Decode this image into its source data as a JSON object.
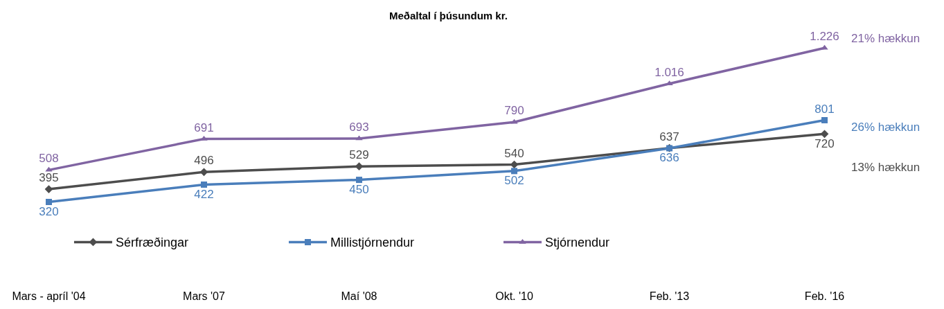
{
  "chart_data": {
    "type": "line",
    "title": "Meðaltal í þúsundum kr.",
    "categories": [
      "Mars - apríl '04",
      "Mars '07",
      "Maí '08",
      "Okt. '10",
      "Feb. '13",
      "Feb. '16"
    ],
    "series": [
      {
        "name": "Sérfræðingar",
        "color": "#4d4d4d",
        "marker": "diamond",
        "values": [
          395,
          496,
          529,
          540,
          637,
          720
        ],
        "value_labels": [
          "395",
          "496",
          "529",
          "540",
          "637",
          "720"
        ]
      },
      {
        "name": "Millistjórnendur",
        "color": "#4a7ebb",
        "marker": "square",
        "values": [
          320,
          422,
          450,
          502,
          636,
          801
        ],
        "value_labels": [
          "320",
          "422",
          "450",
          "502",
          "636",
          "801"
        ]
      },
      {
        "name": "Stjórnendur",
        "color": "#8064a2",
        "marker": "triangle",
        "values": [
          508,
          691,
          693,
          790,
          1016,
          1226
        ],
        "value_labels": [
          "508",
          "691",
          "693",
          "790",
          "1.016",
          "1.226"
        ]
      }
    ],
    "annotations": [
      "13% hækkun",
      "26% hækkun",
      "21% hækkun"
    ],
    "tick_labels": "x",
    "legend": "bottom",
    "line_style": "solid"
  }
}
